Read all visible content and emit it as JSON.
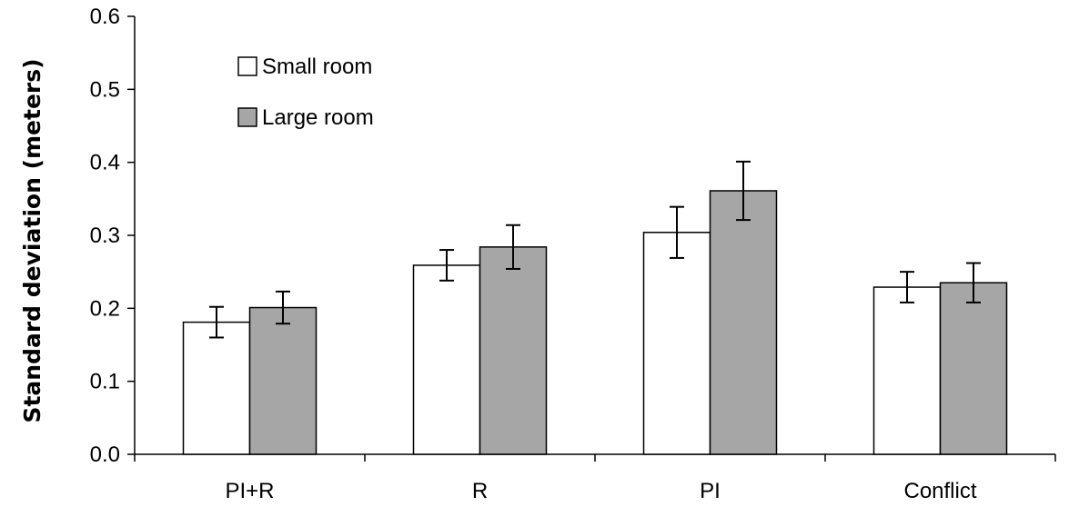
{
  "chart_data": {
    "type": "bar",
    "title": "",
    "xlabel": "",
    "ylabel": "Standard deviation (meters)",
    "ylim": [
      0,
      0.6
    ],
    "yticks": [
      "0.0",
      "0.1",
      "0.2",
      "0.3",
      "0.4",
      "0.5",
      "0.6"
    ],
    "categories": [
      "PI+R",
      "R",
      "PI",
      "Conflict"
    ],
    "series": [
      {
        "name": "Small room",
        "color": "#ffffff",
        "values": [
          0.181,
          0.259,
          0.304,
          0.229
        ],
        "errors": [
          0.021,
          0.021,
          0.035,
          0.021
        ]
      },
      {
        "name": "Large room",
        "color": "#a6a6a6",
        "values": [
          0.201,
          0.284,
          0.361,
          0.235
        ],
        "errors": [
          0.022,
          0.03,
          0.04,
          0.027
        ]
      }
    ],
    "legend_position": "top-left",
    "grid": false
  }
}
